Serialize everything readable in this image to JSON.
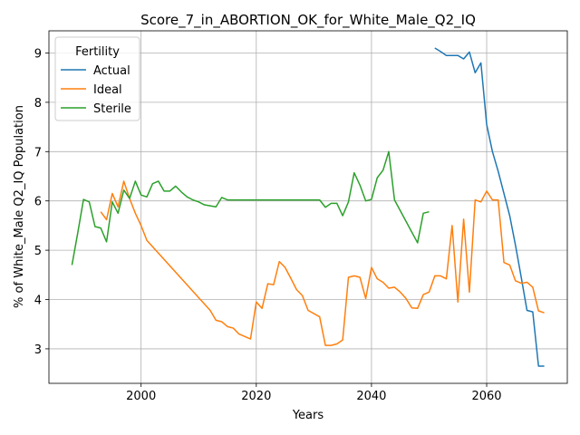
{
  "chart_data": {
    "type": "line",
    "title": "Score_7_in_ABORTION_OK_for_White_Male_Q2_IQ",
    "xlabel": "Years",
    "ylabel": "% of White_Male Q2_IQ Population",
    "xlim": [
      1984,
      2074
    ],
    "ylim": [
      2.3,
      9.45
    ],
    "xticks": [
      2000,
      2020,
      2040,
      2060
    ],
    "yticks": [
      3,
      4,
      5,
      6,
      7,
      8,
      9
    ],
    "grid": true,
    "legend": {
      "title": "Fertility",
      "location": "upper-left"
    },
    "series": [
      {
        "name": "Actual",
        "color": "#1f77b4",
        "points": [
          [
            2051,
            9.1
          ],
          [
            2052,
            9.03
          ],
          [
            2053,
            8.95
          ],
          [
            2054,
            8.95
          ],
          [
            2055,
            8.95
          ],
          [
            2056,
            8.88
          ],
          [
            2057,
            9.02
          ],
          [
            2058,
            8.6
          ],
          [
            2059,
            8.8
          ],
          [
            2060,
            7.55
          ],
          [
            2061,
            7.0
          ],
          [
            2062,
            6.6
          ],
          [
            2063,
            6.15
          ],
          [
            2064,
            5.7
          ],
          [
            2065,
            5.1
          ],
          [
            2066,
            4.45
          ],
          [
            2067,
            3.78
          ],
          [
            2068,
            3.75
          ],
          [
            2069,
            2.65
          ],
          [
            2070,
            2.65
          ]
        ]
      },
      {
        "name": "Ideal",
        "color": "#ff7f0e",
        "points": [
          [
            1993,
            5.78
          ],
          [
            1994,
            5.62
          ],
          [
            1995,
            6.15
          ],
          [
            1996,
            5.88
          ],
          [
            1997,
            6.4
          ],
          [
            1998,
            6.05
          ],
          [
            1999,
            5.75
          ],
          [
            2000,
            5.5
          ],
          [
            2001,
            5.2
          ],
          [
            2012,
            3.78
          ],
          [
            2013,
            3.58
          ],
          [
            2014,
            3.55
          ],
          [
            2015,
            3.45
          ],
          [
            2016,
            3.42
          ],
          [
            2017,
            3.3
          ],
          [
            2019,
            3.2
          ],
          [
            2020,
            3.95
          ],
          [
            2021,
            3.82
          ],
          [
            2022,
            4.32
          ],
          [
            2023,
            4.3
          ],
          [
            2024,
            4.77
          ],
          [
            2025,
            4.65
          ],
          [
            2026,
            4.43
          ],
          [
            2027,
            4.2
          ],
          [
            2028,
            4.08
          ],
          [
            2029,
            3.78
          ],
          [
            2031,
            3.65
          ],
          [
            2032,
            3.07
          ],
          [
            2033,
            3.07
          ],
          [
            2034,
            3.1
          ],
          [
            2035,
            3.18
          ],
          [
            2036,
            4.45
          ],
          [
            2037,
            4.48
          ],
          [
            2038,
            4.45
          ],
          [
            2039,
            4.02
          ],
          [
            2040,
            4.65
          ],
          [
            2041,
            4.42
          ],
          [
            2042,
            4.35
          ],
          [
            2043,
            4.23
          ],
          [
            2044,
            4.25
          ],
          [
            2045,
            4.15
          ],
          [
            2046,
            4.02
          ],
          [
            2047,
            3.83
          ],
          [
            2048,
            3.82
          ],
          [
            2049,
            4.1
          ],
          [
            2050,
            4.15
          ],
          [
            2051,
            4.48
          ],
          [
            2052,
            4.48
          ],
          [
            2053,
            4.42
          ],
          [
            2054,
            5.5
          ],
          [
            2055,
            3.95
          ],
          [
            2056,
            5.63
          ],
          [
            2057,
            4.15
          ],
          [
            2058,
            6.02
          ],
          [
            2059,
            5.98
          ],
          [
            2060,
            6.2
          ],
          [
            2061,
            6.02
          ],
          [
            2062,
            6.02
          ],
          [
            2063,
            4.75
          ],
          [
            2064,
            4.7
          ],
          [
            2065,
            4.38
          ],
          [
            2066,
            4.33
          ],
          [
            2067,
            4.35
          ],
          [
            2068,
            4.25
          ],
          [
            2069,
            3.77
          ],
          [
            2070,
            3.73
          ]
        ]
      },
      {
        "name": "Sterile",
        "color": "#2ca02c",
        "points": [
          [
            1988,
            4.7
          ],
          [
            1989,
            5.35
          ],
          [
            1990,
            6.03
          ],
          [
            1991,
            5.98
          ],
          [
            1992,
            5.48
          ],
          [
            1993,
            5.45
          ],
          [
            1994,
            5.17
          ],
          [
            1995,
            5.98
          ],
          [
            1996,
            5.75
          ],
          [
            1997,
            6.22
          ],
          [
            1998,
            6.05
          ],
          [
            1999,
            6.4
          ],
          [
            2000,
            6.12
          ],
          [
            2001,
            6.08
          ],
          [
            2002,
            6.35
          ],
          [
            2003,
            6.4
          ],
          [
            2004,
            6.2
          ],
          [
            2005,
            6.2
          ],
          [
            2006,
            6.3
          ],
          [
            2007,
            6.18
          ],
          [
            2008,
            6.08
          ],
          [
            2009,
            6.02
          ],
          [
            2010,
            5.98
          ],
          [
            2011,
            5.92
          ],
          [
            2012,
            5.9
          ],
          [
            2013,
            5.88
          ],
          [
            2014,
            6.07
          ],
          [
            2015,
            6.02
          ],
          [
            2031,
            6.02
          ],
          [
            2032,
            5.87
          ],
          [
            2033,
            5.95
          ],
          [
            2034,
            5.95
          ],
          [
            2035,
            5.7
          ],
          [
            2036,
            5.98
          ],
          [
            2037,
            6.57
          ],
          [
            2038,
            6.32
          ],
          [
            2039,
            6.0
          ],
          [
            2040,
            6.03
          ],
          [
            2041,
            6.47
          ],
          [
            2042,
            6.62
          ],
          [
            2043,
            7.0
          ],
          [
            2044,
            6.02
          ],
          [
            2048,
            5.15
          ],
          [
            2049,
            5.75
          ],
          [
            2050,
            5.78
          ]
        ]
      }
    ]
  }
}
